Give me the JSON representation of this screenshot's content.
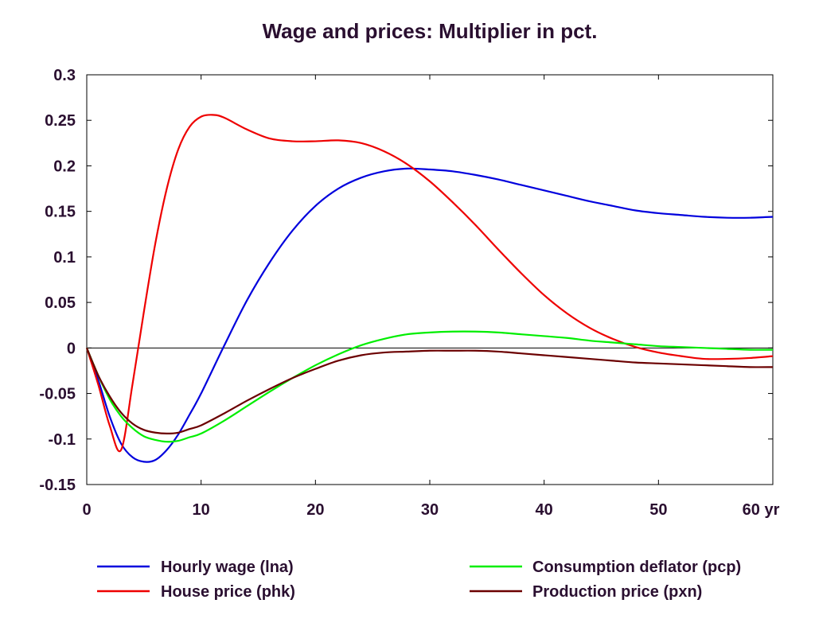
{
  "chart_data": {
    "type": "line",
    "title": "Wage and prices: Multiplier in pct.",
    "xlabel": "",
    "ylabel": "",
    "xlim": [
      0,
      60
    ],
    "ylim": [
      -0.15,
      0.3
    ],
    "x_unit_label": "yr",
    "x_ticks": [
      0,
      10,
      20,
      30,
      40,
      50,
      60
    ],
    "x_tick_labels": [
      "0",
      "10",
      "20",
      "30",
      "40",
      "50",
      "60 yr"
    ],
    "y_ticks": [
      -0.15,
      -0.1,
      -0.05,
      0,
      0.05,
      0.1,
      0.15,
      0.2,
      0.25,
      0.3
    ],
    "y_tick_labels": [
      "-0.15",
      "-0.1",
      "-0.05",
      "0",
      "0.05",
      "0.1",
      "0.15",
      "0.2",
      "0.25",
      "0.3"
    ],
    "grid": false,
    "zero_line": true,
    "legend_position": "bottom",
    "series": [
      {
        "name": "Hourly wage (lna)",
        "color": "#0000dd",
        "x": [
          0,
          1,
          2,
          3,
          4,
          5,
          6,
          7,
          8,
          9,
          10,
          12,
          14,
          16,
          18,
          20,
          22,
          24,
          26,
          28,
          30,
          32,
          34,
          36,
          38,
          40,
          42,
          44,
          46,
          48,
          50,
          52,
          54,
          56,
          58,
          60
        ],
        "values": [
          0,
          -0.035,
          -0.075,
          -0.105,
          -0.12,
          -0.125,
          -0.123,
          -0.112,
          -0.095,
          -0.073,
          -0.05,
          0.002,
          0.052,
          0.094,
          0.129,
          0.156,
          0.175,
          0.187,
          0.194,
          0.197,
          0.196,
          0.194,
          0.19,
          0.185,
          0.179,
          0.173,
          0.167,
          0.161,
          0.156,
          0.151,
          0.148,
          0.146,
          0.144,
          0.143,
          0.143,
          0.144
        ]
      },
      {
        "name": "House price (phk)",
        "color": "#ee0000",
        "x": [
          0,
          1,
          2,
          3,
          4,
          5,
          6,
          7,
          8,
          9,
          10,
          11,
          12,
          14,
          16,
          18,
          20,
          22,
          24,
          26,
          28,
          30,
          32,
          34,
          36,
          38,
          40,
          42,
          44,
          46,
          48,
          50,
          52,
          54,
          56,
          58,
          60
        ],
        "values": [
          0,
          -0.04,
          -0.085,
          -0.112,
          -0.04,
          0.04,
          0.115,
          0.175,
          0.218,
          0.243,
          0.254,
          0.256,
          0.253,
          0.24,
          0.23,
          0.227,
          0.227,
          0.228,
          0.225,
          0.216,
          0.202,
          0.183,
          0.16,
          0.135,
          0.108,
          0.082,
          0.058,
          0.038,
          0.022,
          0.01,
          0.001,
          -0.005,
          -0.009,
          -0.012,
          -0.012,
          -0.011,
          -0.009
        ]
      },
      {
        "name": "Consumption deflator (pcp)",
        "color": "#00ee00",
        "x": [
          0,
          1,
          2,
          3,
          4,
          5,
          6,
          7,
          8,
          9,
          10,
          12,
          14,
          16,
          18,
          20,
          22,
          24,
          26,
          28,
          30,
          32,
          34,
          36,
          38,
          40,
          42,
          44,
          46,
          48,
          50,
          52,
          54,
          56,
          58,
          60
        ],
        "values": [
          0,
          -0.03,
          -0.056,
          -0.075,
          -0.088,
          -0.097,
          -0.101,
          -0.103,
          -0.102,
          -0.098,
          -0.094,
          -0.08,
          -0.064,
          -0.048,
          -0.033,
          -0.019,
          -0.007,
          0.003,
          0.01,
          0.015,
          0.017,
          0.018,
          0.018,
          0.017,
          0.015,
          0.013,
          0.011,
          0.008,
          0.006,
          0.004,
          0.002,
          0.001,
          0,
          -0.001,
          -0.002,
          -0.002
        ]
      },
      {
        "name": "Production price (pxn)",
        "color": "#6b0000",
        "x": [
          0,
          1,
          2,
          3,
          4,
          5,
          6,
          7,
          8,
          9,
          10,
          12,
          14,
          16,
          18,
          20,
          22,
          24,
          26,
          28,
          30,
          32,
          34,
          36,
          38,
          40,
          42,
          44,
          46,
          48,
          50,
          52,
          54,
          56,
          58,
          60
        ],
        "values": [
          0,
          -0.03,
          -0.053,
          -0.071,
          -0.083,
          -0.09,
          -0.093,
          -0.094,
          -0.093,
          -0.089,
          -0.085,
          -0.072,
          -0.058,
          -0.045,
          -0.033,
          -0.023,
          -0.014,
          -0.008,
          -0.005,
          -0.004,
          -0.003,
          -0.003,
          -0.003,
          -0.004,
          -0.006,
          -0.008,
          -0.01,
          -0.012,
          -0.014,
          -0.016,
          -0.017,
          -0.018,
          -0.019,
          -0.02,
          -0.021,
          -0.021
        ]
      }
    ]
  }
}
